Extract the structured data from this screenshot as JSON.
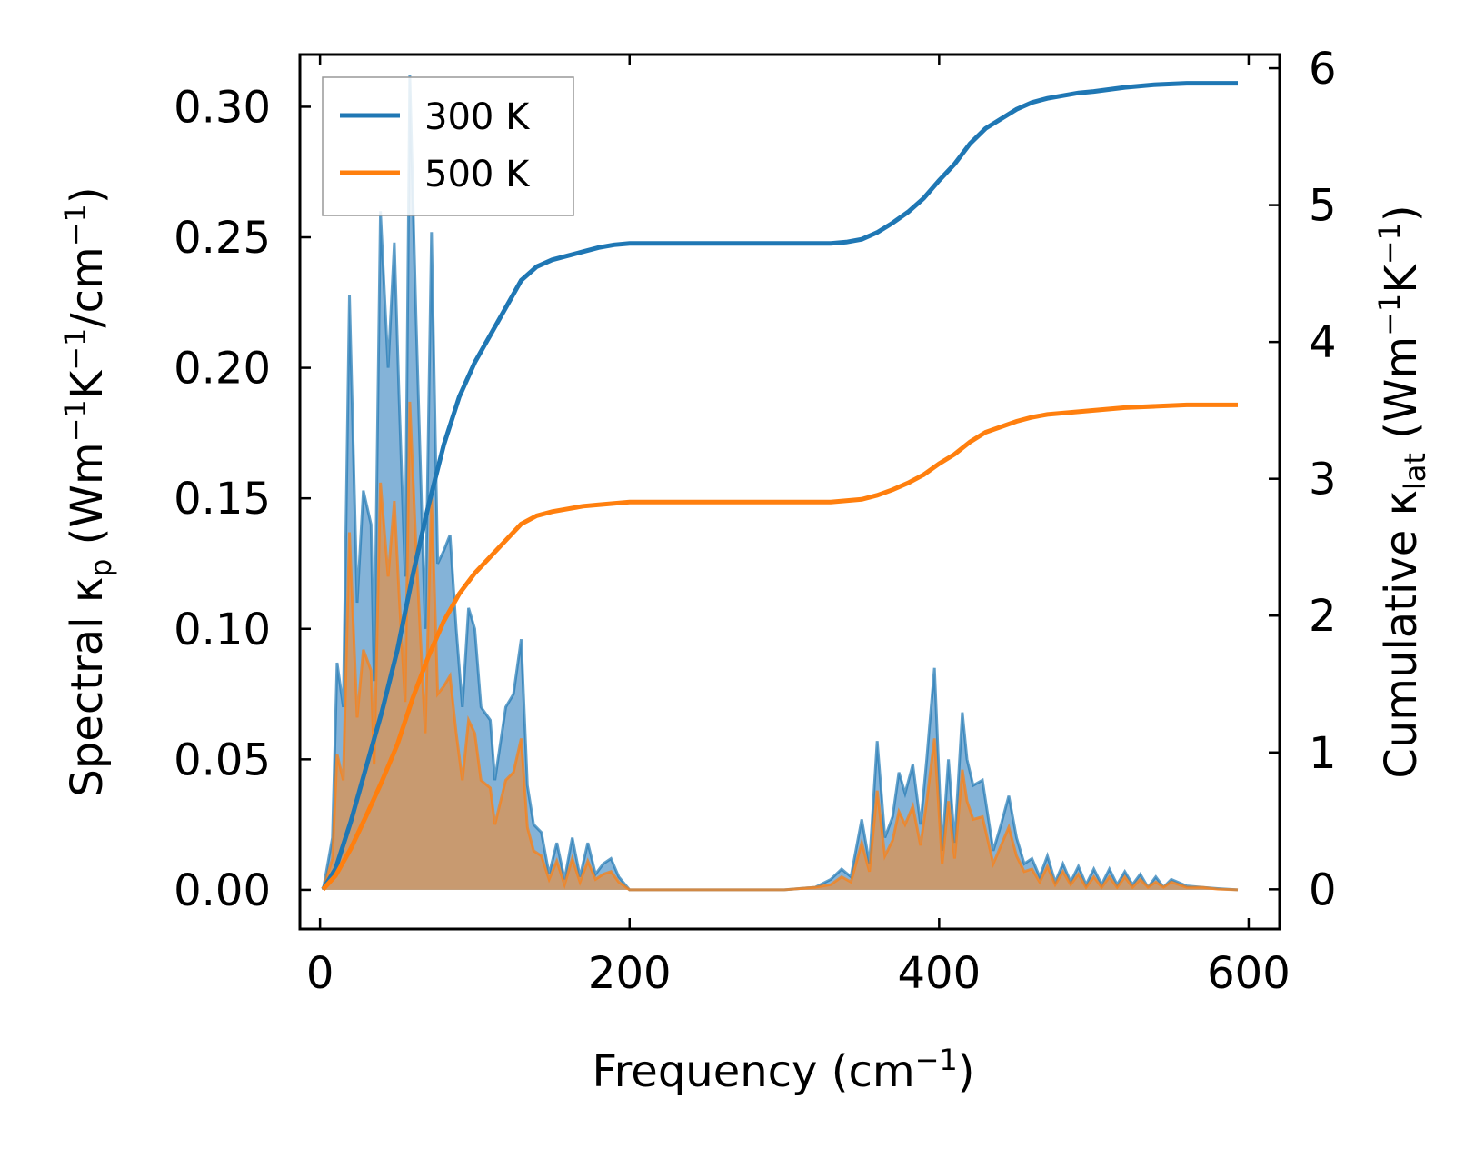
{
  "chart_data": {
    "type": "line",
    "xlabel_base": "Frequency (cm",
    "xlabel_sup": "−1",
    "xlabel_close": ")",
    "ylabel_left": {
      "p1": "Spectral κ",
      "sub": "p",
      "p2": " (Wm",
      "sup1": "−1",
      "p3": "K",
      "sup2": "−1",
      "p4": "/cm",
      "sup3": "−1",
      "p5": ")"
    },
    "ylabel_right": {
      "p1": "Cumulative κ",
      "sub": "lat",
      "p2": " (Wm",
      "sup1": "−1",
      "p3": "K",
      "sup2": "−1",
      "p4": ")"
    },
    "xlim": [
      -13,
      620
    ],
    "ylim_left": [
      -0.015,
      0.32
    ],
    "ylim_right": [
      -0.29,
      6.1
    ],
    "xticks": [
      "0",
      "200",
      "400",
      "600"
    ],
    "xtick_values": [
      0,
      200,
      400,
      600
    ],
    "yticks_left": [
      "0.00",
      "0.05",
      "0.10",
      "0.15",
      "0.20",
      "0.25",
      "0.30"
    ],
    "ytick_left_values": [
      0,
      0.05,
      0.1,
      0.15,
      0.2,
      0.25,
      0.3
    ],
    "yticks_right": [
      "0",
      "1",
      "2",
      "3",
      "4",
      "5",
      "6"
    ],
    "ytick_right_values": [
      0,
      1,
      2,
      3,
      4,
      5,
      6
    ],
    "legend": {
      "placement": "top-left",
      "entries": [
        "300 K",
        "500 K"
      ]
    },
    "colors": {
      "c300": "#1f77b4",
      "c500": "#ff7f0e",
      "fill300": "#6ea6d1",
      "fill500": "#c89a70"
    },
    "spectral": [
      {
        "name": "300 K",
        "x": [
          2,
          8,
          11,
          15,
          19,
          24,
          28,
          33,
          35,
          39,
          44,
          48,
          51,
          55,
          58,
          62,
          66,
          68,
          72,
          76,
          80,
          84,
          88,
          92,
          96,
          100,
          104,
          110,
          113,
          120,
          125,
          130,
          134,
          138,
          143,
          148,
          153,
          158,
          163,
          168,
          173,
          178,
          183,
          188,
          193,
          200,
          205,
          210,
          250,
          300,
          320,
          330,
          337,
          343,
          350,
          355,
          360,
          365,
          370,
          374,
          378,
          383,
          388,
          392,
          397,
          402,
          406,
          410,
          415,
          418,
          422,
          428,
          435,
          440,
          445,
          450,
          455,
          460,
          465,
          470,
          475,
          480,
          485,
          490,
          495,
          500,
          505,
          510,
          515,
          520,
          525,
          530,
          535,
          540,
          545,
          550,
          560,
          570,
          580,
          593
        ],
        "values": [
          0.0,
          0.02,
          0.087,
          0.07,
          0.228,
          0.11,
          0.153,
          0.14,
          0.08,
          0.26,
          0.2,
          0.248,
          0.19,
          0.12,
          0.312,
          0.22,
          0.14,
          0.1,
          0.252,
          0.125,
          0.13,
          0.136,
          0.1,
          0.07,
          0.108,
          0.1,
          0.07,
          0.065,
          0.042,
          0.07,
          0.075,
          0.096,
          0.04,
          0.025,
          0.022,
          0.006,
          0.018,
          0.004,
          0.02,
          0.005,
          0.018,
          0.006,
          0.01,
          0.012,
          0.005,
          0.0,
          0.0,
          0.0,
          0.0,
          0.0,
          0.001,
          0.004,
          0.008,
          0.005,
          0.027,
          0.01,
          0.057,
          0.02,
          0.028,
          0.045,
          0.037,
          0.048,
          0.025,
          0.05,
          0.085,
          0.015,
          0.05,
          0.018,
          0.068,
          0.05,
          0.04,
          0.042,
          0.015,
          0.025,
          0.036,
          0.02,
          0.01,
          0.012,
          0.005,
          0.013,
          0.003,
          0.01,
          0.003,
          0.009,
          0.002,
          0.008,
          0.002,
          0.008,
          0.002,
          0.007,
          0.002,
          0.006,
          0.001,
          0.005,
          0.001,
          0.004,
          0.0015,
          0.001,
          0.0005,
          0.0
        ]
      },
      {
        "name": "500 K",
        "x": [
          2,
          8,
          11,
          15,
          19,
          24,
          28,
          33,
          35,
          39,
          44,
          48,
          51,
          55,
          58,
          62,
          66,
          68,
          72,
          76,
          80,
          84,
          88,
          92,
          96,
          100,
          104,
          110,
          113,
          120,
          125,
          130,
          134,
          138,
          143,
          148,
          153,
          158,
          163,
          168,
          173,
          178,
          183,
          188,
          193,
          200,
          205,
          210,
          250,
          300,
          320,
          330,
          337,
          343,
          350,
          355,
          360,
          365,
          370,
          374,
          378,
          383,
          388,
          392,
          397,
          402,
          406,
          410,
          415,
          418,
          422,
          428,
          435,
          440,
          445,
          450,
          455,
          460,
          465,
          470,
          475,
          480,
          485,
          490,
          495,
          500,
          505,
          510,
          515,
          520,
          525,
          530,
          535,
          540,
          545,
          550,
          560,
          570,
          580,
          593
        ],
        "values": [
          0.0,
          0.012,
          0.052,
          0.042,
          0.137,
          0.066,
          0.092,
          0.084,
          0.048,
          0.156,
          0.12,
          0.149,
          0.114,
          0.072,
          0.187,
          0.132,
          0.084,
          0.06,
          0.151,
          0.075,
          0.078,
          0.082,
          0.06,
          0.042,
          0.065,
          0.06,
          0.042,
          0.039,
          0.025,
          0.042,
          0.045,
          0.058,
          0.024,
          0.015,
          0.013,
          0.004,
          0.011,
          0.002,
          0.012,
          0.003,
          0.011,
          0.004,
          0.006,
          0.007,
          0.003,
          0.0,
          0.0,
          0.0,
          0.0,
          0.0,
          0.001,
          0.002,
          0.005,
          0.003,
          0.018,
          0.007,
          0.038,
          0.013,
          0.019,
          0.03,
          0.025,
          0.032,
          0.017,
          0.034,
          0.058,
          0.01,
          0.034,
          0.012,
          0.046,
          0.034,
          0.027,
          0.028,
          0.01,
          0.017,
          0.024,
          0.013,
          0.007,
          0.008,
          0.003,
          0.009,
          0.002,
          0.007,
          0.002,
          0.006,
          0.001,
          0.005,
          0.001,
          0.005,
          0.001,
          0.005,
          0.001,
          0.004,
          0.001,
          0.003,
          0.001,
          0.003,
          0.001,
          0.001,
          0.0003,
          0.0
        ]
      }
    ],
    "cumulative": [
      {
        "name": "300 K",
        "x": [
          2,
          10,
          20,
          30,
          40,
          50,
          60,
          70,
          80,
          90,
          100,
          110,
          120,
          130,
          140,
          150,
          160,
          170,
          180,
          190,
          200,
          220,
          250,
          300,
          320,
          330,
          340,
          350,
          360,
          370,
          380,
          390,
          400,
          410,
          420,
          430,
          440,
          450,
          460,
          470,
          480,
          490,
          500,
          520,
          540,
          560,
          580,
          593
        ],
        "values": [
          0.0,
          0.15,
          0.5,
          0.9,
          1.3,
          1.75,
          2.3,
          2.8,
          3.25,
          3.6,
          3.85,
          4.05,
          4.25,
          4.45,
          4.55,
          4.6,
          4.63,
          4.66,
          4.69,
          4.71,
          4.72,
          4.72,
          4.72,
          4.72,
          4.72,
          4.72,
          4.73,
          4.75,
          4.8,
          4.87,
          4.95,
          5.05,
          5.18,
          5.3,
          5.45,
          5.56,
          5.63,
          5.7,
          5.75,
          5.78,
          5.8,
          5.82,
          5.83,
          5.86,
          5.88,
          5.89,
          5.89,
          5.89
        ]
      },
      {
        "name": "500 K",
        "x": [
          2,
          10,
          20,
          30,
          40,
          50,
          60,
          70,
          80,
          90,
          100,
          110,
          120,
          130,
          140,
          150,
          160,
          170,
          180,
          190,
          200,
          220,
          250,
          300,
          320,
          330,
          340,
          350,
          360,
          370,
          380,
          390,
          400,
          410,
          420,
          430,
          440,
          450,
          460,
          470,
          480,
          490,
          500,
          520,
          540,
          560,
          580,
          593
        ],
        "values": [
          0.0,
          0.1,
          0.3,
          0.54,
          0.79,
          1.06,
          1.4,
          1.7,
          1.96,
          2.16,
          2.31,
          2.43,
          2.55,
          2.67,
          2.73,
          2.76,
          2.78,
          2.8,
          2.81,
          2.82,
          2.83,
          2.83,
          2.83,
          2.83,
          2.83,
          2.83,
          2.84,
          2.85,
          2.88,
          2.92,
          2.97,
          3.03,
          3.11,
          3.18,
          3.27,
          3.34,
          3.38,
          3.42,
          3.45,
          3.47,
          3.48,
          3.49,
          3.5,
          3.52,
          3.53,
          3.54,
          3.54,
          3.54
        ]
      }
    ]
  }
}
